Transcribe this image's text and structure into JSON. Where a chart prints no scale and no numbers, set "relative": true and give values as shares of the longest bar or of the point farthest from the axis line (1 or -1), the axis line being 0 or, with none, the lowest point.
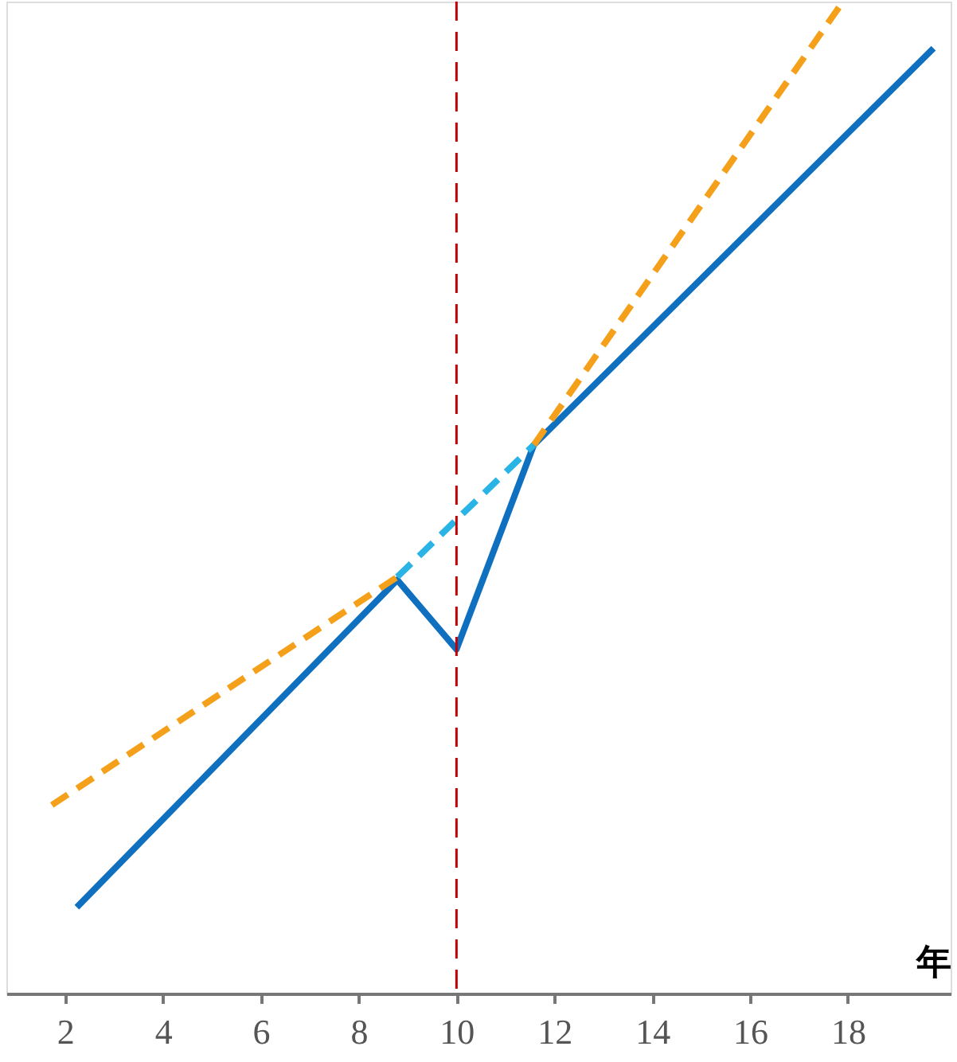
{
  "chart_data": {
    "type": "line",
    "relative": true,
    "xlabel": "年",
    "xlim": [
      0.8,
      20.1
    ],
    "xticks": [
      2,
      4,
      6,
      8,
      10,
      12,
      14,
      16,
      18
    ],
    "marker": "none",
    "series": [
      {
        "color": "#1070c0",
        "line_style": "solid",
        "x": [
          2.24,
          8.79,
          10.0,
          11.58,
          19.75
        ],
        "values": [
          0.087,
          0.417,
          0.347,
          0.553,
          0.953
        ]
      },
      {
        "color": "#f5a01a",
        "line_style": "dashed",
        "x": [
          1.73,
          8.79,
          10.0,
          11.58,
          17.9
        ],
        "values": [
          0.19,
          0.42,
          null,
          0.553,
          1.0
        ]
      },
      {
        "color": "#2ab4e6",
        "line_style": "dashed",
        "x": [
          8.79,
          11.58
        ],
        "values": [
          0.42,
          0.553
        ]
      }
    ],
    "ref_lines": [
      {
        "axis": "x",
        "value": 10,
        "color": "#c00000",
        "line_style": "dashed"
      }
    ]
  }
}
